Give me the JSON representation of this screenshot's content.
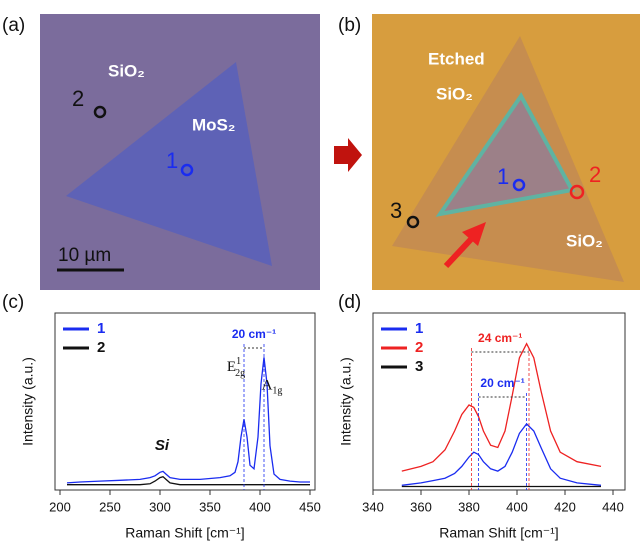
{
  "panel_a": {
    "label": "(a)",
    "substrate": "SiO₂",
    "flake": "MoS₂",
    "points": [
      "1",
      "2"
    ],
    "scale_bar": "10 µm"
  },
  "panel_b": {
    "label": "(b)",
    "etched": "Etched",
    "etched_substrate": "SiO₂",
    "substrate": "SiO₂",
    "points": [
      "1",
      "2",
      "3"
    ]
  },
  "chart_data": [
    {
      "type": "line",
      "label": "(c)",
      "x_label": "Raman Shift [cm⁻¹]",
      "y_label": "Intensity (a.u.)",
      "x": [
        207,
        220,
        240,
        260,
        280,
        290,
        295,
        300,
        303,
        306,
        310,
        320,
        340,
        360,
        370,
        375,
        378,
        381,
        384,
        387,
        390,
        394,
        398,
        401,
        404,
        407,
        410,
        414,
        420,
        430,
        440,
        450
      ],
      "series": [
        {
          "name": "1",
          "color": "#1a2cf0",
          "values": [
            4,
            4.5,
            5,
            5.5,
            6,
            7,
            8,
            10,
            10.5,
            9,
            7,
            6,
            6,
            7,
            8,
            10,
            16,
            30,
            40,
            30,
            14,
            12,
            30,
            60,
            75,
            60,
            25,
            9,
            6,
            5,
            4.5,
            4.5
          ]
        },
        {
          "name": "2",
          "color": "#111111",
          "values": [
            3,
            3,
            3,
            3,
            3,
            3.5,
            5,
            7,
            7.5,
            6,
            4,
            3,
            3,
            3,
            3,
            3,
            3,
            3,
            3,
            3,
            3,
            3,
            3,
            3,
            3,
            3,
            3,
            3,
            3,
            3,
            3,
            3
          ]
        }
      ],
      "xlim": [
        195,
        455
      ],
      "xticks": [
        200,
        250,
        300,
        350,
        400,
        450
      ],
      "ylim": [
        0,
        100
      ],
      "peaks": [
        {
          "x": 302,
          "base": "Si"
        },
        {
          "x": 376,
          "base": "E",
          "sub": "2g",
          "sup": "1"
        },
        {
          "x": 412,
          "base": "A",
          "sub": "1g"
        }
      ],
      "spans": [
        {
          "text": "20 cm⁻¹",
          "from": 384,
          "to": 404,
          "color": "#1a2cf0"
        }
      ]
    },
    {
      "type": "line",
      "label": "(d)",
      "x_label": "Raman Shift [cm⁻¹]",
      "y_label": "Intensity (a.u.)",
      "x": [
        352,
        360,
        365,
        370,
        374,
        377,
        380,
        382,
        384,
        386,
        389,
        392,
        395,
        398,
        401,
        404,
        407,
        410,
        414,
        418,
        425,
        435
      ],
      "series": [
        {
          "name": "1",
          "color": "#1a2cf0",
          "values": [
            2,
            3,
            4,
            5,
            7,
            10,
            14,
            16,
            15,
            12,
            9,
            8,
            10,
            16,
            24,
            28,
            25,
            18,
            9,
            5,
            3,
            2
          ]
        },
        {
          "name": "2",
          "color": "#ee2222",
          "values": [
            8,
            10,
            12,
            17,
            25,
            32,
            36,
            35,
            31,
            25,
            19,
            18,
            25,
            40,
            56,
            62,
            56,
            42,
            25,
            16,
            12,
            10
          ]
        },
        {
          "name": "3",
          "color": "#111111",
          "values": [
            1.5,
            1.5,
            1.5,
            1.5,
            1.5,
            1.5,
            1.5,
            1.5,
            1.5,
            1.5,
            1.5,
            1.5,
            1.5,
            1.5,
            1.5,
            1.5,
            1.5,
            1.5,
            1.5,
            1.5,
            1.5,
            1.5
          ]
        }
      ],
      "xlim": [
        340,
        445
      ],
      "xticks": [
        340,
        360,
        380,
        400,
        420,
        440
      ],
      "ylim": [
        0,
        75
      ],
      "spans": [
        {
          "text": "24 cm⁻¹",
          "from": 381,
          "to": 405,
          "color": "#ee2222"
        },
        {
          "text": "20 cm⁻¹",
          "from": 384,
          "to": 404,
          "color": "#1a2cf0"
        }
      ]
    }
  ]
}
